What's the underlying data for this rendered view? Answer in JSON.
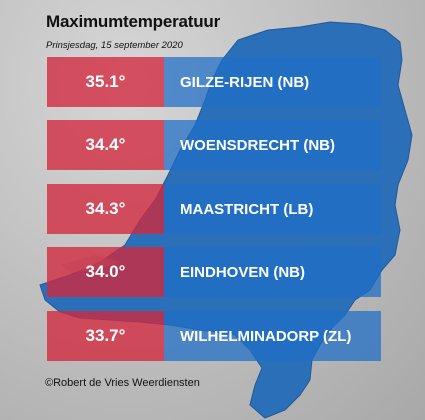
{
  "title": "Maximumtemperatuur",
  "subtitle": "Prinsjesdag, 15 september 2020",
  "rows": [
    {
      "temp": "35.1°",
      "station": "GILZE-RIJEN (NB)"
    },
    {
      "temp": "34.4°",
      "station": "WOENSDRECHT (NB)"
    },
    {
      "temp": "34.3°",
      "station": "MAASTRICHT (LB)"
    },
    {
      "temp": "34.0°",
      "station": "EINDHOVEN (NB)"
    },
    {
      "temp": "33.7°",
      "station": "WILHELMINADORP (ZL)"
    }
  ],
  "credit": "©Robert de Vries Weerdiensten",
  "colors": {
    "temp_bg": "#d2283c",
    "station_bg": "#1e6ec8",
    "map_fill": "#2b6fb8"
  }
}
